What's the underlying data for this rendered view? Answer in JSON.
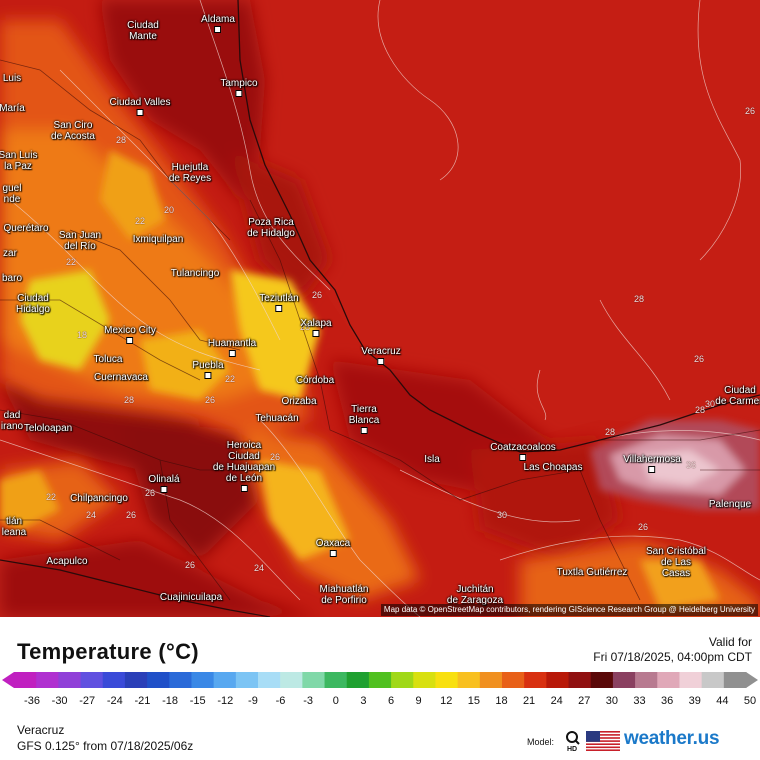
{
  "map": {
    "attribution": "Map data © OpenStreetMap contributors, rendering GIScience Research Group @ Heidelberg University",
    "cities": [
      {
        "name": "Aldama"
      },
      {
        "name": "Ciudad\nMante"
      },
      {
        "name": "Tampico"
      },
      {
        "name": "Ciudad Valles"
      },
      {
        "name": "San Ciro\nde Acosta"
      },
      {
        "name": "Huejutla\nde Reyes"
      },
      {
        "name": "Poza Rica\nde Hidalgo"
      },
      {
        "name": "Ixmiquilpan"
      },
      {
        "name": "San Juan\ndel Río"
      },
      {
        "name": "Querétaro"
      },
      {
        "name": "Tulancingo"
      },
      {
        "name": "Teziutlán"
      },
      {
        "name": "Xalapa"
      },
      {
        "name": "Ciudad\nHidalgo"
      },
      {
        "name": "Mexico City"
      },
      {
        "name": "Huamantla"
      },
      {
        "name": "Toluca"
      },
      {
        "name": "Puebla"
      },
      {
        "name": "Veracruz"
      },
      {
        "name": "Cuernavaca"
      },
      {
        "name": "Córdoba"
      },
      {
        "name": "Orizaba"
      },
      {
        "name": "Tierra\nBlanca"
      },
      {
        "name": "Tehuacán"
      },
      {
        "name": "Teloloapan"
      },
      {
        "name": "Heroica\nCiudad\nde Huajuapan\nde León"
      },
      {
        "name": "Coatzacoalcos"
      },
      {
        "name": "Isla"
      },
      {
        "name": "Las Choapas"
      },
      {
        "name": "Villahermosa"
      },
      {
        "name": "Olinalá"
      },
      {
        "name": "Chilpancingo"
      },
      {
        "name": "Oaxaca"
      },
      {
        "name": "Acapulco"
      },
      {
        "name": "Cuajinicuilapa"
      },
      {
        "name": "Miahuatlán\nde Porfirio"
      },
      {
        "name": "Juchitán\nde Zaragoza"
      },
      {
        "name": "Tuxtla Gutiérrez"
      },
      {
        "name": "San Cristóbal\nde Las\nCasas"
      },
      {
        "name": "Palenque"
      },
      {
        "name": "Ciudad\nde Carmen"
      },
      {
        "name": "Luis"
      },
      {
        "name": "María"
      },
      {
        "name": "San Luis\nla Paz"
      },
      {
        "name": "guel\nnde"
      },
      {
        "name": "zar"
      },
      {
        "name": "baro"
      },
      {
        "name": "dad\nirano"
      },
      {
        "name": "tlán\nleana"
      }
    ],
    "contour_labels": [
      "26",
      "28",
      "22",
      "20",
      "22",
      "26",
      "28",
      "26",
      "28",
      "30",
      "18",
      "22",
      "26",
      "28",
      "26",
      "36",
      "22",
      "24",
      "26",
      "26",
      "24",
      "26",
      "30",
      "26",
      "36",
      "28",
      "28"
    ]
  },
  "legend": {
    "title": "Temperature (°C)",
    "valid_label": "Valid for",
    "valid_time": "Fri 07/18/2025, 04:00pm CDT",
    "ticks": [
      "-36",
      "-30",
      "-27",
      "-24",
      "-21",
      "-18",
      "-15",
      "-12",
      "-9",
      "-6",
      "-3",
      "0",
      "3",
      "6",
      "9",
      "12",
      "15",
      "18",
      "21",
      "24",
      "27",
      "30",
      "33",
      "36",
      "39",
      "44",
      "50"
    ],
    "colors": [
      "#c020c0",
      "#b030d0",
      "#9040d8",
      "#6050e0",
      "#3a4ad8",
      "#2a3fb8",
      "#2050c8",
      "#2a6ad8",
      "#3a88e6",
      "#58a8f0",
      "#7cc4f4",
      "#a8ddf6",
      "#bde9e4",
      "#80d8a8",
      "#3cb860",
      "#1fa030",
      "#50c020",
      "#a0d818",
      "#d8e010",
      "#f8e010",
      "#f8c020",
      "#f09020",
      "#e86018",
      "#d83010",
      "#b81808",
      "#901010",
      "#5a0808",
      "#8a4060",
      "#b87a90",
      "#e0a8b8",
      "#f0d0d8",
      "#c8c8c8",
      "#909090"
    ],
    "location": "Veracruz",
    "model_line": "GFS 0.125° from  07/18/2025/06z",
    "model_label": "Model:",
    "brand": "weather.us",
    "icons": [
      "magnifier-hd-icon",
      "us-flag-icon"
    ]
  }
}
